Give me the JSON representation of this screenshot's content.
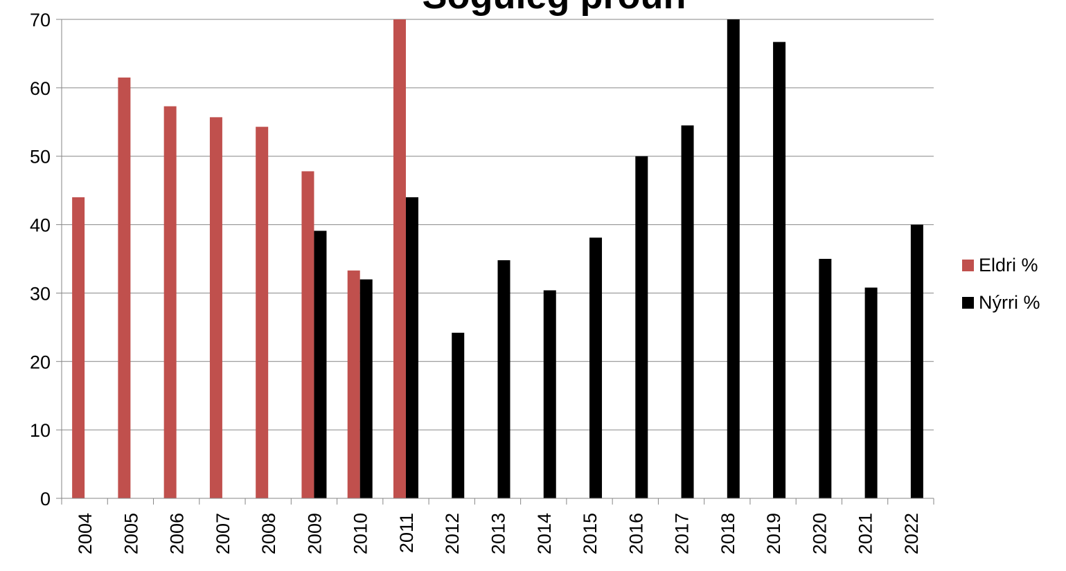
{
  "chart_data": {
    "type": "bar",
    "title": "Söguleg þróun",
    "xlabel": "",
    "ylabel": "",
    "ylim": [
      0,
      70
    ],
    "yticks": [
      0,
      10,
      20,
      30,
      40,
      50,
      60,
      70
    ],
    "grid": true,
    "legend_position": "right",
    "categories": [
      "2004",
      "2005",
      "2006",
      "2007",
      "2008",
      "2009",
      "2010",
      "2011",
      "2012",
      "2013",
      "2014",
      "2015",
      "2016",
      "2017",
      "2018",
      "2019",
      "2020",
      "2021",
      "2022"
    ],
    "series": [
      {
        "name": "Eldri %",
        "color": "#c0504d",
        "values": [
          44,
          61.5,
          57.3,
          55.7,
          54.3,
          47.8,
          33.3,
          70,
          null,
          null,
          null,
          null,
          null,
          null,
          null,
          null,
          null,
          null,
          null
        ]
      },
      {
        "name": "Nýrri %",
        "color": "#000000",
        "values": [
          null,
          null,
          null,
          null,
          null,
          39.1,
          32,
          44,
          24.2,
          34.8,
          30.4,
          38.1,
          50,
          54.5,
          70,
          66.7,
          35,
          30.8,
          40
        ]
      }
    ]
  }
}
